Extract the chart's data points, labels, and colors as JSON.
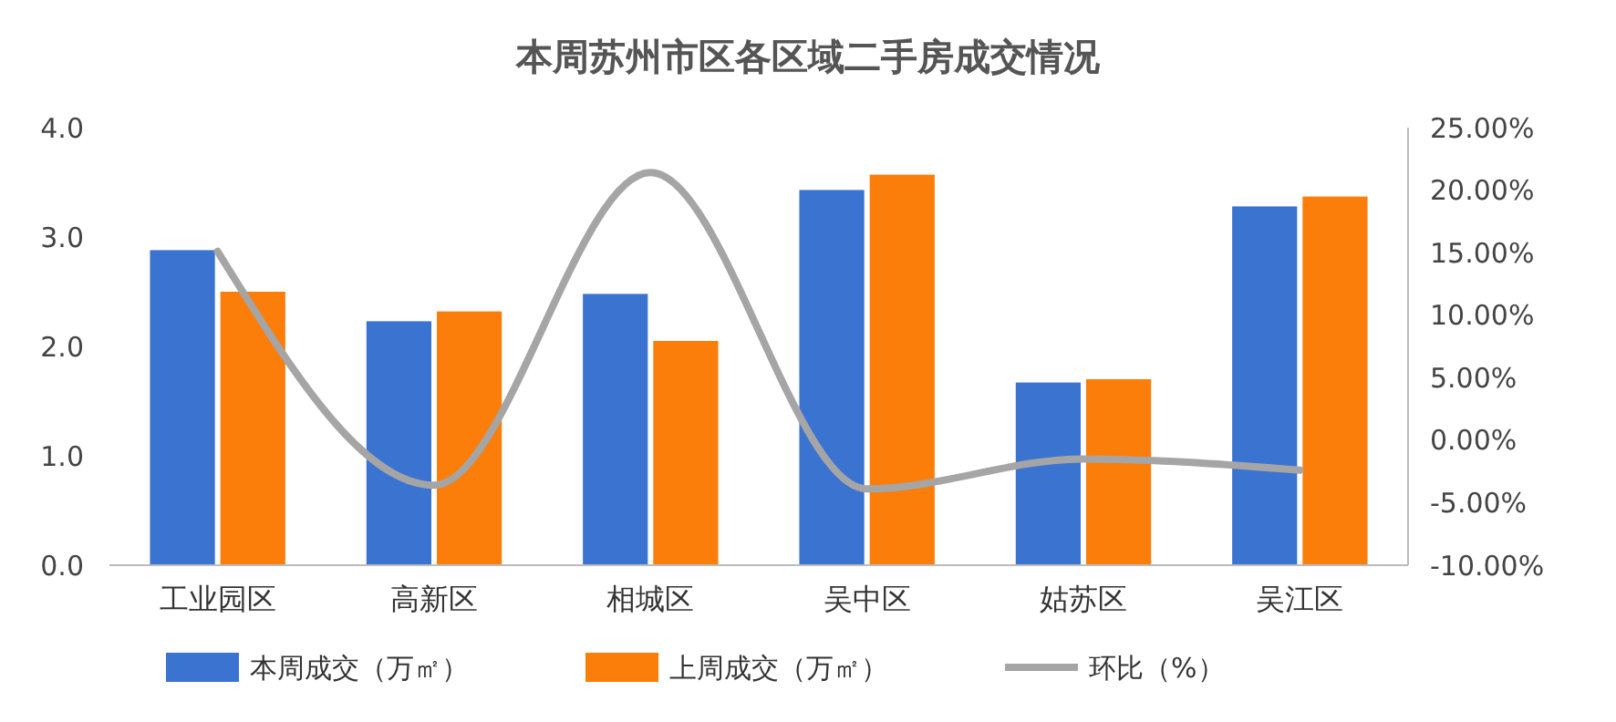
{
  "chart_data": {
    "type": "bar",
    "title": "本周苏州市区各区域二手房成交情况",
    "categories": [
      "工业园区",
      "高新区",
      "相城区",
      "吴中区",
      "姑苏区",
      "吴江区"
    ],
    "series": [
      {
        "name": "本周成交（万㎡）",
        "color": "#3b73d0",
        "values": [
          2.88,
          2.23,
          2.48,
          3.43,
          1.67,
          3.28
        ]
      },
      {
        "name": "上周成交（万㎡）",
        "color": "#fb7d0a",
        "values": [
          2.5,
          2.32,
          2.05,
          3.57,
          1.7,
          3.37
        ]
      },
      {
        "name": "环比（%）",
        "type": "line",
        "axis": "y2",
        "color": "#a5a5a5",
        "values": [
          15.1,
          -3.6,
          21.4,
          -3.9,
          -1.5,
          -2.4
        ]
      }
    ],
    "ylim": [
      0,
      4
    ],
    "yticks": [
      {
        "value": 0,
        "label": "0.0"
      },
      {
        "value": 1,
        "label": "1.0"
      },
      {
        "value": 2,
        "label": "2.0"
      },
      {
        "value": 3,
        "label": "3.0"
      },
      {
        "value": 4,
        "label": "4.0"
      }
    ],
    "y2lim": [
      -10,
      25
    ],
    "y2ticks": [
      {
        "value": -10,
        "label": "-10.00%"
      },
      {
        "value": -5,
        "label": "-5.00%"
      },
      {
        "value": 0,
        "label": "0.00%"
      },
      {
        "value": 5,
        "label": "5.00%"
      },
      {
        "value": 10,
        "label": "10.00%"
      },
      {
        "value": 15,
        "label": "15.00%"
      },
      {
        "value": 20,
        "label": "20.00%"
      },
      {
        "value": 25,
        "label": "25.00%"
      }
    ],
    "legend": "bottom",
    "grid": false
  }
}
